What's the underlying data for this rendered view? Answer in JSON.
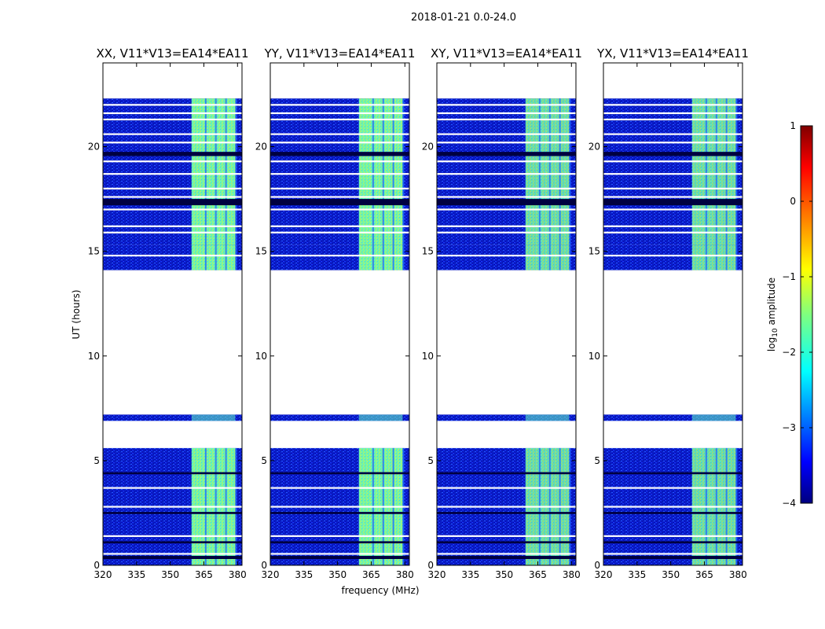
{
  "figure_title": "2018-01-21 0.0-24.0",
  "chart_data": {
    "type": "heatmap",
    "title": "2018-01-21 0.0-24.0",
    "xlabel": "frequency (MHz)",
    "ylabel": "UT (hours)",
    "xlim": [
      320,
      382
    ],
    "ylim": [
      0,
      24
    ],
    "xticks": [
      320,
      335,
      350,
      365,
      380
    ],
    "yticks": [
      0,
      5,
      10,
      15,
      20
    ],
    "colorbar": {
      "label": "log",
      "label_sub": "10",
      "label_rest": " amplitude",
      "range": [
        -4,
        1
      ],
      "ticks": [
        1,
        0,
        -1,
        -2,
        -3,
        -4
      ],
      "colormap": "jet"
    },
    "panels": [
      {
        "name": "XX",
        "title": "XX, V11*V13=EA14*EA11"
      },
      {
        "name": "YY",
        "title": "YY, V11*V13=EA14*EA11"
      },
      {
        "name": "XY",
        "title": "XY, V11*V13=EA14*EA11"
      },
      {
        "name": "YX",
        "title": "YX, V11*V13=EA14*EA11"
      }
    ],
    "data_time_ranges_hours": [
      [
        0,
        5.6
      ],
      [
        6.9,
        7.2
      ],
      [
        14.1,
        15.3
      ],
      [
        15.3,
        22.3
      ]
    ],
    "rfi_band_mhz": [
      359.5,
      379
    ],
    "rfi_channels_mhz": [
      362,
      366.5,
      371,
      375.5
    ],
    "background_log10_amplitude": -3.6,
    "rfi_log10_amplitude": -1.6,
    "blank_time_lines_hours": [
      0.55,
      1.4,
      2.8,
      3.7,
      14.8,
      15.9,
      16.2,
      17.0,
      17.6,
      18.0,
      18.7,
      19.3,
      20.2,
      20.6,
      21.3,
      21.6,
      22.0
    ],
    "dark_time_bands_hours": [
      [
        0.3,
        0.45
      ],
      [
        1.05,
        1.15
      ],
      [
        2.45,
        2.55
      ],
      [
        4.35,
        4.45
      ],
      [
        17.2,
        17.5
      ],
      [
        19.55,
        19.75
      ]
    ]
  }
}
